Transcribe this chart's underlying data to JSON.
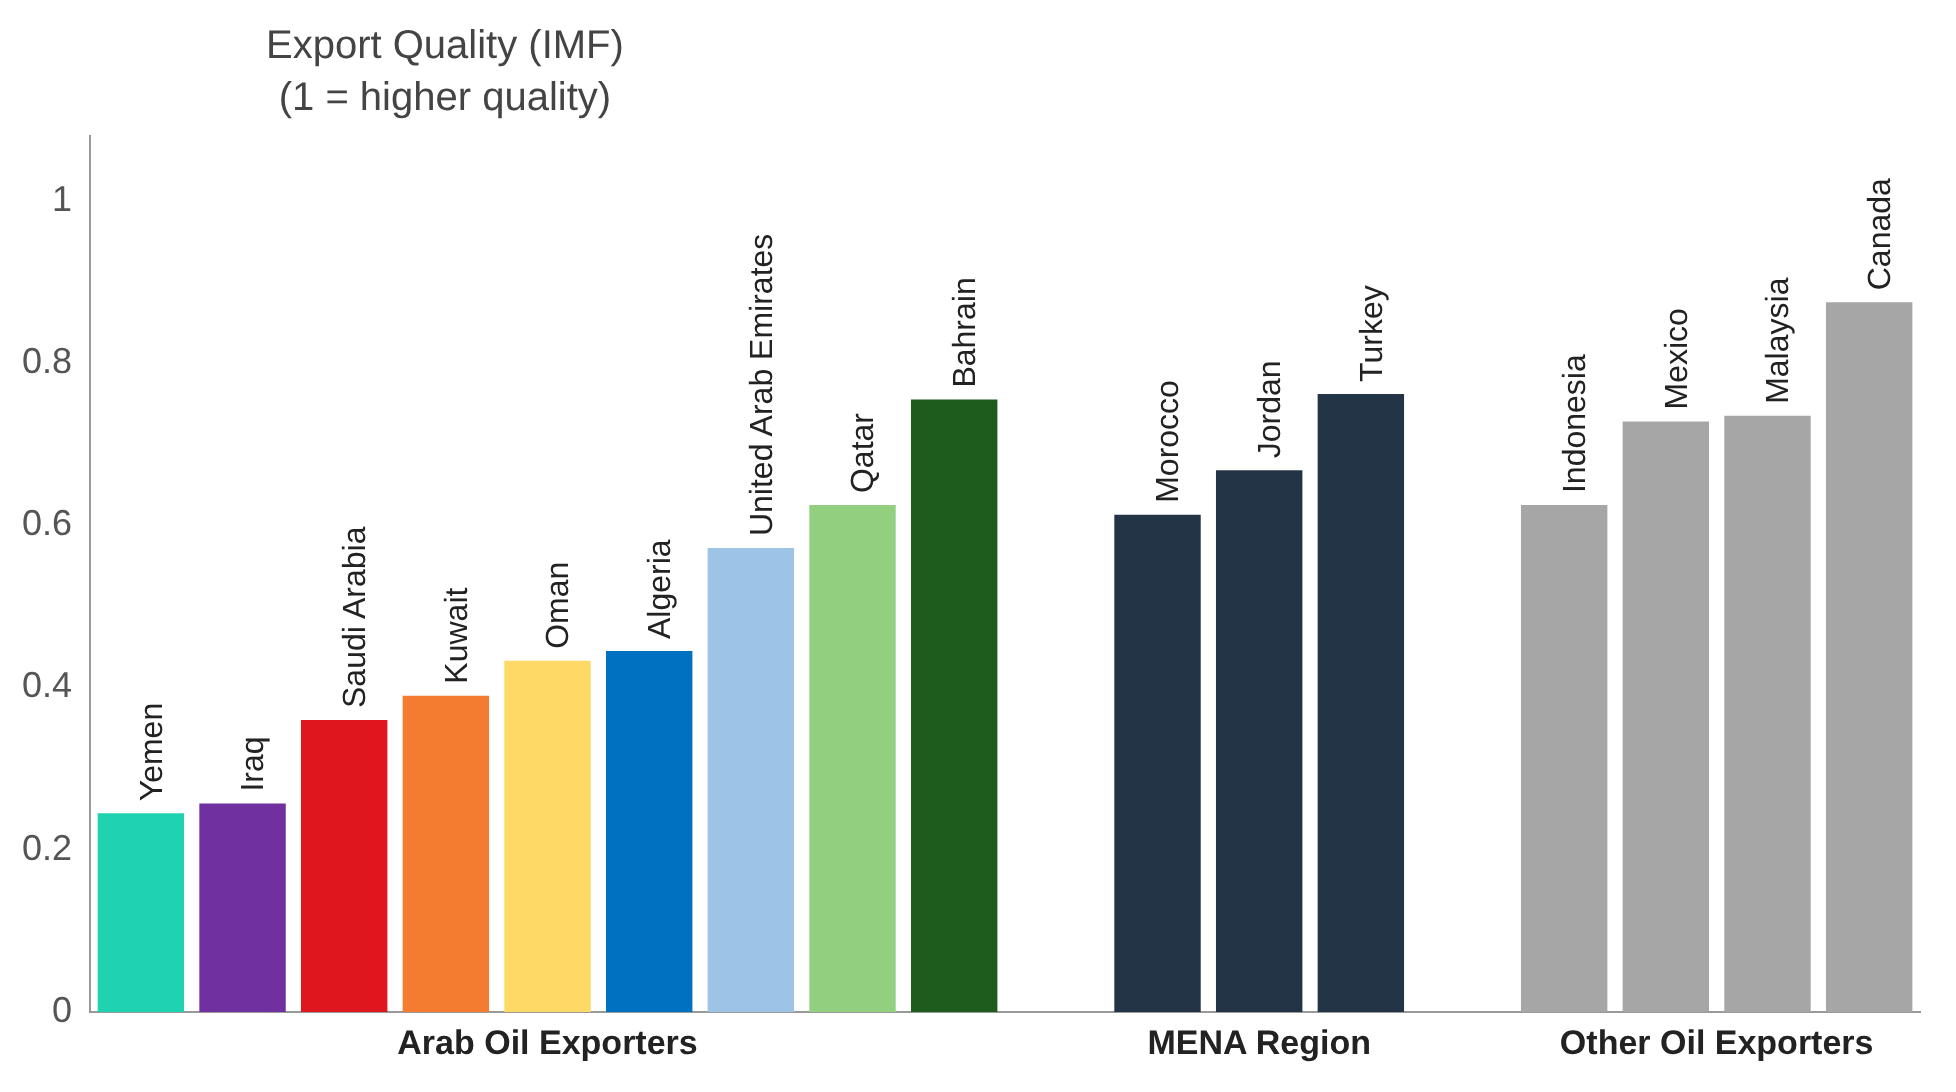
{
  "chart_data": {
    "type": "bar",
    "ylabel": "Export Quality (IMF)\n(1 = higher quality)",
    "categories": [
      "Yemen",
      "Iraq",
      "Saudi Arabia",
      "Kuwait",
      "Oman",
      "Algeria",
      "United Arab Emirates",
      "Qatar",
      "Bahrain",
      null,
      "Morocco",
      "Jordan",
      "Turkey",
      null,
      "Indonesia",
      "Mexico",
      "Malaysia",
      "Canada"
    ],
    "values": [
      0.245,
      0.257,
      0.36,
      0.39,
      0.433,
      0.445,
      0.572,
      0.625,
      0.755,
      null,
      0.613,
      0.668,
      0.762,
      null,
      0.625,
      0.728,
      0.735,
      0.875
    ],
    "colors": [
      "#1fd3b0",
      "#7030a0",
      "#e0161e",
      "#f47c30",
      "#ffd966",
      "#0070c0",
      "#9dc3e6",
      "#92d080",
      "#1e5c1e",
      "#ffffff",
      "#243447",
      "#243447",
      "#243447",
      "#ffffff",
      "#a6a6a6",
      "#a6a6a6",
      "#a6a6a6",
      "#a6a6a6"
    ],
    "ylim": [
      0,
      1.08
    ],
    "yticks": [
      0,
      0.2,
      0.4,
      0.6,
      0.8,
      1
    ],
    "grid": false,
    "legend": false,
    "annotations": [
      "Arab Oil Exporters",
      "MENA Region",
      "Other Oil Exporters"
    ]
  }
}
